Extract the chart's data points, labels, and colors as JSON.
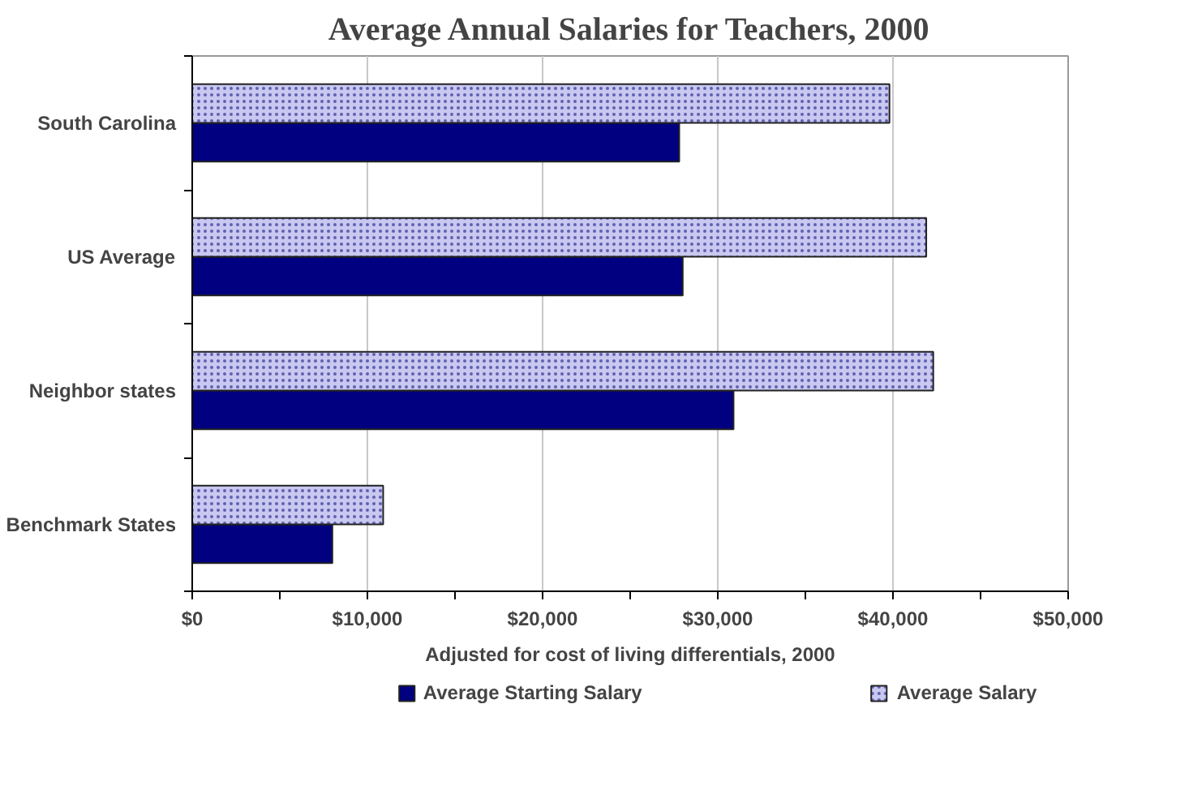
{
  "chart_data": {
    "type": "bar",
    "orientation": "horizontal",
    "title": "Average Annual Salaries for Teachers, 2000",
    "xlabel": "Adjusted for cost of living differentials, 2000",
    "categories": [
      "South Carolina",
      "US Average",
      "Neighbor states",
      "Benchmark States"
    ],
    "series": [
      {
        "name": "Average Starting Salary",
        "color": "#000080",
        "values": [
          27800,
          28000,
          30900,
          8000
        ]
      },
      {
        "name": "Average Salary",
        "color": "#c8c8f0",
        "values": [
          39800,
          41900,
          42300,
          10900
        ]
      }
    ],
    "xlim": [
      0,
      50000
    ],
    "xticks": [
      {
        "value": 0,
        "label": "$0"
      },
      {
        "value": 10000,
        "label": "$10,000"
      },
      {
        "value": 20000,
        "label": "$20,000"
      },
      {
        "value": 30000,
        "label": "$30,000"
      },
      {
        "value": 40000,
        "label": "$40,000"
      },
      {
        "value": 50000,
        "label": "$50,000"
      }
    ],
    "grid": "x",
    "legend": "bottom"
  }
}
